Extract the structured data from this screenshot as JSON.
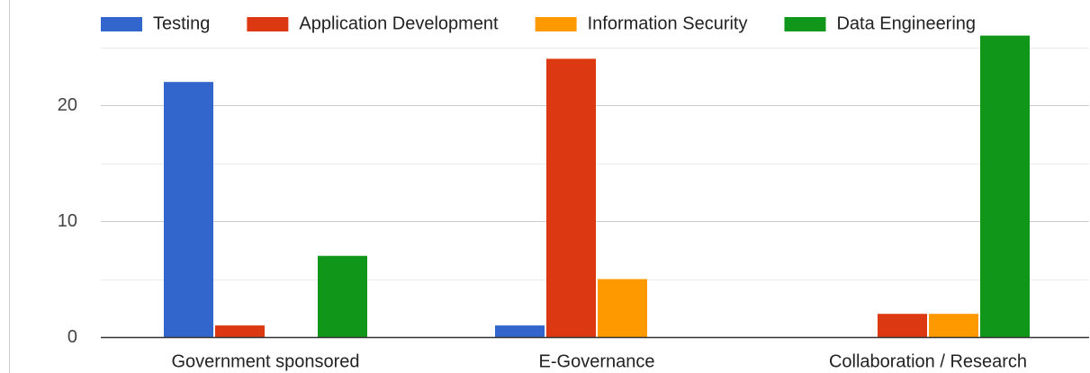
{
  "chart_data": {
    "type": "bar",
    "categories": [
      "Government sponsored",
      "E-Governance",
      "Collaboration / Research"
    ],
    "series": [
      {
        "name": "Testing",
        "color": "#3366cc",
        "values": [
          22,
          1,
          0
        ]
      },
      {
        "name": "Application Development",
        "color": "#dc3912",
        "values": [
          1,
          24,
          2
        ]
      },
      {
        "name": "Information Security",
        "color": "#ff9900",
        "values": [
          0,
          5,
          2
        ]
      },
      {
        "name": "Data Engineering",
        "color": "#109618",
        "values": [
          7,
          0,
          26
        ]
      }
    ],
    "ylim": [
      0,
      26
    ],
    "yticks": [
      0,
      10,
      20
    ],
    "minor_yticks": [
      5,
      15,
      25
    ],
    "grid": true,
    "legend": "top"
  }
}
